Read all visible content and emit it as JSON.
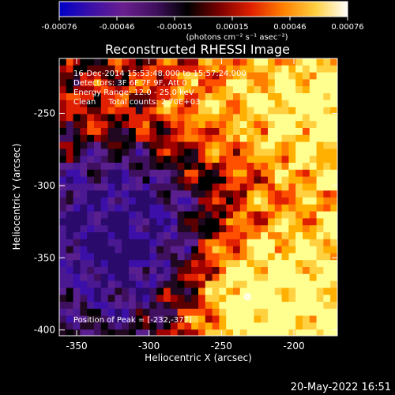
{
  "colorbar": {
    "ticks": [
      "-0.00076",
      "-0.00046",
      "-0.00015",
      "0.00015",
      "0.00046",
      "0.00076"
    ],
    "units": "(photons cm⁻² s⁻¹ asec⁻²)",
    "stops": [
      "#0000c8",
      "#3c10a8",
      "#6a1f8e",
      "#401060",
      "#000000",
      "#7a0000",
      "#e02000",
      "#ff8000",
      "#ffd040",
      "#ffffff"
    ]
  },
  "chart_data": {
    "type": "heatmap",
    "title": "Reconstructed RHESSI Image",
    "xlabel": "Heliocentric X (arcsec)",
    "ylabel": "Heliocentric Y (arcsec)",
    "xticks": [
      "-350",
      "-300",
      "-250",
      "-200"
    ],
    "yticks": [
      "-250",
      "-300",
      "-350",
      "-400"
    ],
    "xlim": [
      -362,
      -170
    ],
    "ylim": [
      -404,
      -212
    ],
    "xtick_values": [
      -350,
      -300,
      -250,
      -200
    ],
    "ytick_values": [
      -250,
      -300,
      -350,
      -400
    ],
    "info": [
      "16-Dec-2014 15:53:48.000 to 15:57:24.000",
      "Detectors: 3F 6F 7F 9F, Att 0",
      "Energy Range: 12.0 - 25.0 keV",
      "Clean     Total counts: 2.70E+03"
    ],
    "peak_label": "Position of Peak = [-232,-377]",
    "peak": [
      -232,
      -377
    ],
    "value_range": [
      -0.00076,
      0.00076
    ],
    "grid": false,
    "legend": "none"
  },
  "footer": {
    "timestamp": "20-May-2022 16:51"
  }
}
